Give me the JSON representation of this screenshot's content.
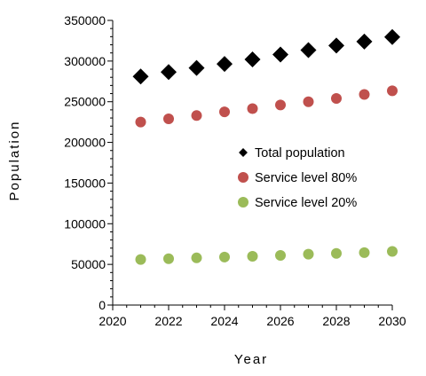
{
  "chart_data": {
    "type": "scatter",
    "title": "",
    "xlabel": "Year",
    "ylabel": "Population",
    "xlim": [
      2020,
      2030
    ],
    "ylim": [
      0,
      350000
    ],
    "x_ticks": [
      2020,
      2022,
      2024,
      2026,
      2028,
      2030
    ],
    "y_ticks": [
      0,
      50000,
      100000,
      150000,
      200000,
      250000,
      300000,
      350000
    ],
    "x_tick_labels": [
      "2020",
      "2022",
      "2024",
      "2026",
      "2028",
      "2030"
    ],
    "y_tick_labels": [
      "0",
      "50000",
      "100000",
      "150000",
      "200000",
      "250000",
      "300000",
      "350000"
    ],
    "grid": false,
    "legend_position": "right-center",
    "x": [
      2021,
      2022,
      2023,
      2024,
      2025,
      2026,
      2027,
      2028,
      2029,
      2030
    ],
    "series": [
      {
        "name": "Total population",
        "marker": "diamond",
        "color": "#000000",
        "values": [
          281000,
          286500,
          291500,
          296500,
          302000,
          308000,
          313500,
          319000,
          324000,
          329500
        ]
      },
      {
        "name": "Service level 80%",
        "marker": "circle",
        "color": "#c0504d",
        "values": [
          225000,
          229000,
          233000,
          237500,
          241500,
          246000,
          250000,
          254000,
          259000,
          263500
        ]
      },
      {
        "name": "Service level 20%",
        "marker": "circle",
        "color": "#9bbb59",
        "values": [
          56000,
          57000,
          58000,
          59000,
          60000,
          61000,
          62500,
          63500,
          64500,
          66000
        ]
      }
    ]
  }
}
